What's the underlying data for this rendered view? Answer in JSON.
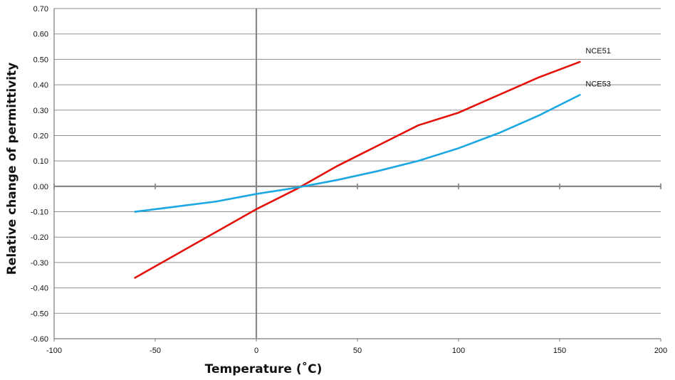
{
  "chart_data": {
    "type": "line",
    "xlabel": "Temperature (˚C)",
    "ylabel": "Relative change of permittivity",
    "xlim": [
      -100,
      200
    ],
    "ylim": [
      -0.6,
      0.7
    ],
    "xticks": [
      -100,
      -50,
      0,
      50,
      100,
      150,
      200
    ],
    "yticks": [
      -0.6,
      -0.5,
      -0.4,
      -0.3,
      -0.2,
      -0.1,
      0.0,
      0.1,
      0.2,
      0.3,
      0.4,
      0.5,
      0.6,
      0.7
    ],
    "xtick_labels": [
      "-100",
      "-50",
      "0",
      "50",
      "100",
      "150",
      "200"
    ],
    "ytick_labels": [
      "-0.60",
      "-0.50",
      "-0.40",
      "-0.30",
      "-0.20",
      "-0.10",
      "0.00",
      "0.10",
      "0.20",
      "0.30",
      "0.40",
      "0.50",
      "0.60",
      "0.70"
    ],
    "grid": "horizontal",
    "series": [
      {
        "name": "NCE51",
        "color": "#e3120b",
        "x": [
          -60,
          -40,
          -20,
          0,
          20,
          40,
          60,
          80,
          100,
          120,
          140,
          160
        ],
        "y": [
          -0.36,
          -0.27,
          -0.18,
          -0.09,
          -0.01,
          0.08,
          0.16,
          0.24,
          0.29,
          0.36,
          0.43,
          0.49
        ]
      },
      {
        "name": "NCE53",
        "color": "#1ba7e1",
        "x": [
          -60,
          -40,
          -20,
          0,
          20,
          40,
          60,
          80,
          100,
          120,
          140,
          160
        ],
        "y": [
          -0.1,
          -0.08,
          -0.06,
          -0.03,
          -0.005,
          0.025,
          0.06,
          0.1,
          0.15,
          0.21,
          0.28,
          0.36
        ]
      }
    ]
  }
}
